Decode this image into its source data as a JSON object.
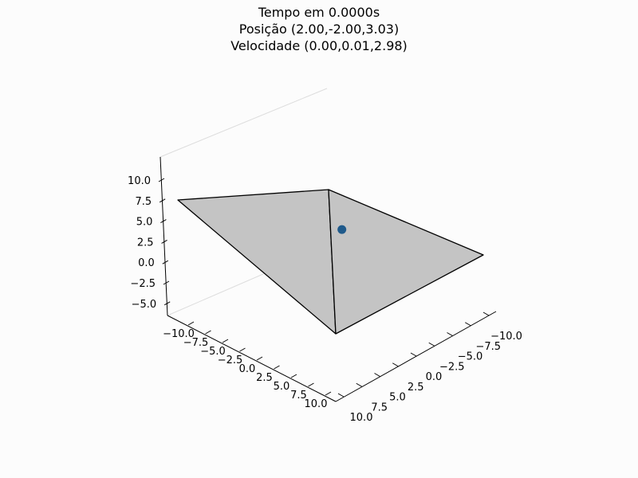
{
  "chart_data": {
    "type": "3d-surface",
    "title_lines": [
      "Tempo em 0.0000s",
      "Posição (2.00,-2.00,3.03)",
      "Velocidade  (0.00,0.01,2.98)"
    ],
    "x_ticks": [
      "−10.0",
      "−7.5",
      "−5.0",
      "−2.5",
      "0.0",
      "2.5",
      "5.0",
      "7.5",
      "10.0"
    ],
    "y_ticks": [
      "−10.0",
      "−7.5",
      "−5.0",
      "−2.5",
      "0.0",
      "2.5",
      "5.0",
      "7.5",
      "10.0"
    ],
    "z_ticks": [
      "10.0",
      "7.5",
      "5.0",
      "2.5",
      "0.0",
      "−2.5",
      "−5.0"
    ],
    "xlim": [
      -10,
      10
    ],
    "ylim": [
      -10,
      10
    ],
    "zlim": [
      -6.5,
      12
    ],
    "point": {
      "x": 2.0,
      "y": -2.0,
      "z": 3.03
    },
    "colors": {
      "surface": "#c4c4c4",
      "edge": "#000000",
      "point": "#1f5a8b",
      "pane": "#dddddd"
    }
  }
}
